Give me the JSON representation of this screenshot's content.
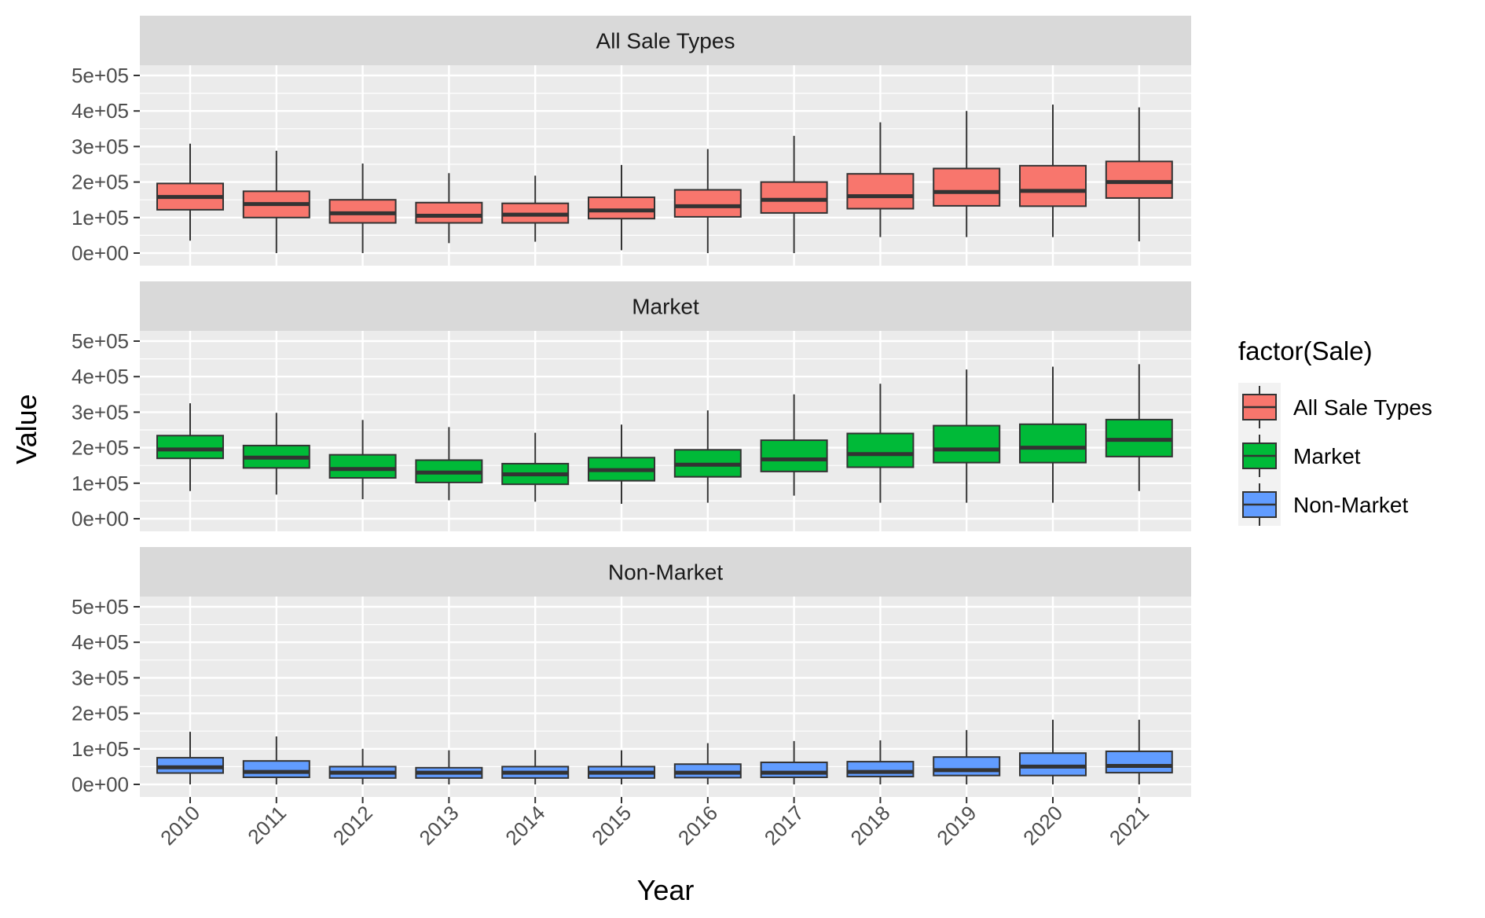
{
  "chart_data": {
    "type": "boxplot",
    "facet_by": "Sale",
    "xlabel": "Year",
    "ylabel": "Value",
    "ylim": [
      0,
      500000
    ],
    "y_ticks": [
      0,
      100000,
      200000,
      300000,
      400000,
      500000
    ],
    "y_tick_labels": [
      "0e+00",
      "1e+05",
      "2e+05",
      "3e+05",
      "4e+05",
      "5e+05"
    ],
    "categories": [
      "2010",
      "2011",
      "2012",
      "2013",
      "2014",
      "2015",
      "2016",
      "2017",
      "2018",
      "2019",
      "2020",
      "2021"
    ],
    "legend": {
      "title": "factor(Sale)",
      "position": "right",
      "entries": [
        "All Sale Types",
        "Market",
        "Non-Market"
      ]
    },
    "colors": {
      "All Sale Types": "#F8766D",
      "Market": "#00BA38",
      "Non-Market": "#619CFF",
      "panel_bg": "#EBEBEB",
      "strip_bg": "#D9D9D9",
      "grid": "#FFFFFF",
      "box_outline": "#333333"
    },
    "panels": [
      {
        "label": "All Sale Types",
        "series": "All Sale Types",
        "boxes": [
          {
            "year": "2010",
            "min": 35000,
            "q1": 122000,
            "median": 158000,
            "q3": 196000,
            "max": 308000
          },
          {
            "year": "2011",
            "min": 0,
            "q1": 100000,
            "median": 138000,
            "q3": 174000,
            "max": 288000
          },
          {
            "year": "2012",
            "min": 0,
            "q1": 85000,
            "median": 112000,
            "q3": 150000,
            "max": 252000
          },
          {
            "year": "2013",
            "min": 28000,
            "q1": 85000,
            "median": 105000,
            "q3": 142000,
            "max": 225000
          },
          {
            "year": "2014",
            "min": 32000,
            "q1": 85000,
            "median": 108000,
            "q3": 140000,
            "max": 218000
          },
          {
            "year": "2015",
            "min": 8000,
            "q1": 97000,
            "median": 120000,
            "q3": 157000,
            "max": 248000
          },
          {
            "year": "2016",
            "min": 0,
            "q1": 102000,
            "median": 132000,
            "q3": 178000,
            "max": 293000
          },
          {
            "year": "2017",
            "min": 0,
            "q1": 113000,
            "median": 150000,
            "q3": 200000,
            "max": 330000
          },
          {
            "year": "2018",
            "min": 45000,
            "q1": 125000,
            "median": 160000,
            "q3": 223000,
            "max": 368000
          },
          {
            "year": "2019",
            "min": 45000,
            "q1": 133000,
            "median": 172000,
            "q3": 238000,
            "max": 400000
          },
          {
            "year": "2020",
            "min": 45000,
            "q1": 132000,
            "median": 175000,
            "q3": 246000,
            "max": 418000
          },
          {
            "year": "2021",
            "min": 33000,
            "q1": 155000,
            "median": 200000,
            "q3": 258000,
            "max": 410000
          }
        ]
      },
      {
        "label": "Market",
        "series": "Market",
        "boxes": [
          {
            "year": "2010",
            "min": 78000,
            "q1": 170000,
            "median": 195000,
            "q3": 234000,
            "max": 325000
          },
          {
            "year": "2011",
            "min": 68000,
            "q1": 143000,
            "median": 172000,
            "q3": 206000,
            "max": 298000
          },
          {
            "year": "2012",
            "min": 55000,
            "q1": 115000,
            "median": 140000,
            "q3": 180000,
            "max": 278000
          },
          {
            "year": "2013",
            "min": 52000,
            "q1": 102000,
            "median": 130000,
            "q3": 165000,
            "max": 258000
          },
          {
            "year": "2014",
            "min": 48000,
            "q1": 97000,
            "median": 125000,
            "q3": 155000,
            "max": 242000
          },
          {
            "year": "2015",
            "min": 42000,
            "q1": 107000,
            "median": 137000,
            "q3": 172000,
            "max": 265000
          },
          {
            "year": "2016",
            "min": 45000,
            "q1": 118000,
            "median": 152000,
            "q3": 194000,
            "max": 305000
          },
          {
            "year": "2017",
            "min": 65000,
            "q1": 133000,
            "median": 167000,
            "q3": 221000,
            "max": 350000
          },
          {
            "year": "2018",
            "min": 45000,
            "q1": 145000,
            "median": 182000,
            "q3": 240000,
            "max": 380000
          },
          {
            "year": "2019",
            "min": 45000,
            "q1": 158000,
            "median": 195000,
            "q3": 262000,
            "max": 420000
          },
          {
            "year": "2020",
            "min": 45000,
            "q1": 158000,
            "median": 200000,
            "q3": 266000,
            "max": 428000
          },
          {
            "year": "2021",
            "min": 78000,
            "q1": 175000,
            "median": 222000,
            "q3": 279000,
            "max": 435000
          }
        ]
      },
      {
        "label": "Non-Market",
        "series": "Non-Market",
        "boxes": [
          {
            "year": "2010",
            "min": 0,
            "q1": 32000,
            "median": 48000,
            "q3": 75000,
            "max": 148000
          },
          {
            "year": "2011",
            "min": 0,
            "q1": 20000,
            "median": 35000,
            "q3": 66000,
            "max": 135000
          },
          {
            "year": "2012",
            "min": 0,
            "q1": 18000,
            "median": 33000,
            "q3": 50000,
            "max": 100000
          },
          {
            "year": "2013",
            "min": 0,
            "q1": 18000,
            "median": 33000,
            "q3": 47000,
            "max": 96000
          },
          {
            "year": "2014",
            "min": 0,
            "q1": 18000,
            "median": 33000,
            "q3": 50000,
            "max": 97000
          },
          {
            "year": "2015",
            "min": 0,
            "q1": 18000,
            "median": 33000,
            "q3": 50000,
            "max": 96000
          },
          {
            "year": "2016",
            "min": 0,
            "q1": 19000,
            "median": 33000,
            "q3": 57000,
            "max": 116000
          },
          {
            "year": "2017",
            "min": 0,
            "q1": 20000,
            "median": 33000,
            "q3": 62000,
            "max": 122000
          },
          {
            "year": "2018",
            "min": 0,
            "q1": 22000,
            "median": 35000,
            "q3": 64000,
            "max": 124000
          },
          {
            "year": "2019",
            "min": 0,
            "q1": 25000,
            "median": 40000,
            "q3": 77000,
            "max": 153000
          },
          {
            "year": "2020",
            "min": 0,
            "q1": 25000,
            "median": 50000,
            "q3": 88000,
            "max": 182000
          },
          {
            "year": "2021",
            "min": 0,
            "q1": 33000,
            "median": 52000,
            "q3": 93000,
            "max": 182000
          }
        ]
      }
    ]
  }
}
